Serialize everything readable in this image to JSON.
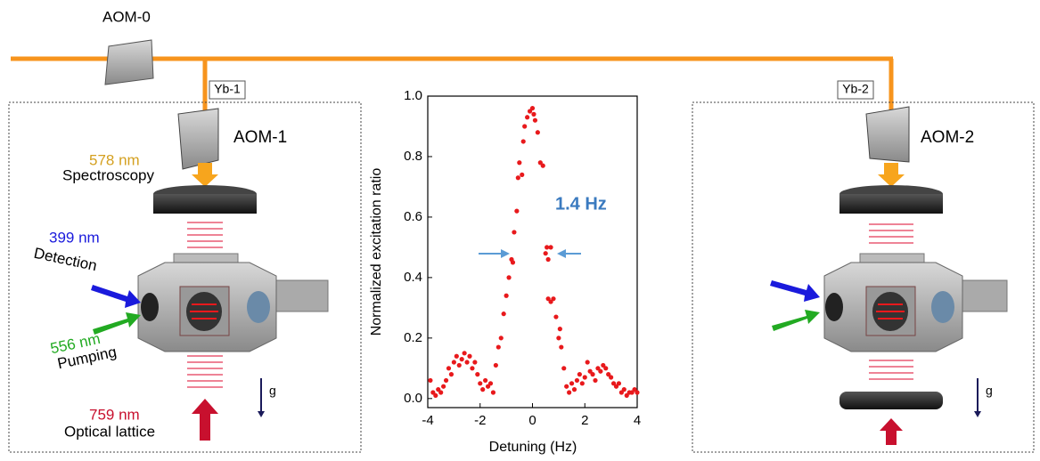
{
  "diagram": {
    "aom0": "AOM-0",
    "yb1": "Yb-1",
    "aom1": "AOM-1",
    "yb2": "Yb-2",
    "aom2": "AOM-2",
    "spec_wavelength": "578 nm",
    "spec_label": "Spectroscopy",
    "det_wavelength": "399 nm",
    "det_label": "Detection",
    "pump_wavelength": "556 nm",
    "pump_label": "Pumping",
    "lattice_wavelength": "759 nm",
    "lattice_label": "Optical lattice",
    "gravity_left": "g",
    "gravity_right": "g"
  },
  "chart_data": {
    "type": "scatter",
    "x_label": "Detuning (Hz)",
    "y_label": "Normalized excitation ratio",
    "annotation": "1.4 Hz",
    "xlim": [
      -4,
      4
    ],
    "xticks": [
      -4,
      -2,
      0,
      2,
      4
    ],
    "ylim": [
      -0.03,
      1.0
    ],
    "yticks": [
      {
        "value": 0,
        "label": "0.0"
      },
      0.2,
      0.4,
      0.6,
      0.8,
      {
        "value": 1,
        "label": "1.0"
      }
    ],
    "color": "#e8191c",
    "x": [
      -3.9,
      -3.8,
      -3.7,
      -3.6,
      -3.5,
      -3.4,
      -3.3,
      -3.2,
      -3.1,
      -3.0,
      -2.9,
      -2.8,
      -2.7,
      -2.6,
      -2.5,
      -2.4,
      -2.3,
      -2.2,
      -2.1,
      -2.0,
      -1.9,
      -1.8,
      -1.7,
      -1.6,
      -1.5,
      -1.4,
      -1.3,
      -1.2,
      -1.1,
      -1.0,
      -0.9,
      -0.8,
      -0.75,
      -0.7,
      -0.6,
      -0.55,
      -0.5,
      -0.4,
      -0.35,
      -0.3,
      -0.2,
      -0.1,
      0.0,
      0.05,
      0.1,
      0.2,
      0.3,
      0.4,
      0.5,
      0.55,
      0.6,
      0.7,
      0.6,
      0.7,
      0.8,
      0.9,
      1.0,
      1.05,
      1.1,
      1.2,
      1.3,
      1.4,
      1.5,
      1.6,
      1.7,
      1.8,
      1.9,
      2.0,
      2.1,
      2.2,
      2.3,
      2.4,
      2.5,
      2.6,
      2.7,
      2.8,
      2.9,
      3.0,
      3.1,
      3.2,
      3.3,
      3.4,
      3.5,
      3.6,
      3.7,
      3.8,
      3.9,
      4.0
    ],
    "values": [
      0.06,
      0.02,
      0.01,
      0.03,
      0.02,
      0.04,
      0.06,
      0.1,
      0.08,
      0.12,
      0.14,
      0.11,
      0.13,
      0.15,
      0.12,
      0.14,
      0.1,
      0.12,
      0.08,
      0.05,
      0.03,
      0.06,
      0.04,
      0.05,
      0.02,
      0.11,
      0.17,
      0.2,
      0.28,
      0.34,
      0.4,
      0.46,
      0.45,
      0.55,
      0.62,
      0.73,
      0.78,
      0.74,
      0.85,
      0.9,
      0.93,
      0.95,
      0.96,
      0.94,
      0.92,
      0.88,
      0.78,
      0.77,
      0.48,
      0.5,
      0.46,
      0.5,
      0.33,
      0.32,
      0.33,
      0.27,
      0.2,
      0.23,
      0.17,
      0.1,
      0.04,
      0.02,
      0.05,
      0.03,
      0.06,
      0.08,
      0.05,
      0.07,
      0.12,
      0.09,
      0.08,
      0.06,
      0.1,
      0.09,
      0.11,
      0.1,
      0.08,
      0.07,
      0.05,
      0.04,
      0.05,
      0.02,
      0.03,
      0.01,
      0.02,
      0.02,
      0.03,
      0.02
    ]
  }
}
